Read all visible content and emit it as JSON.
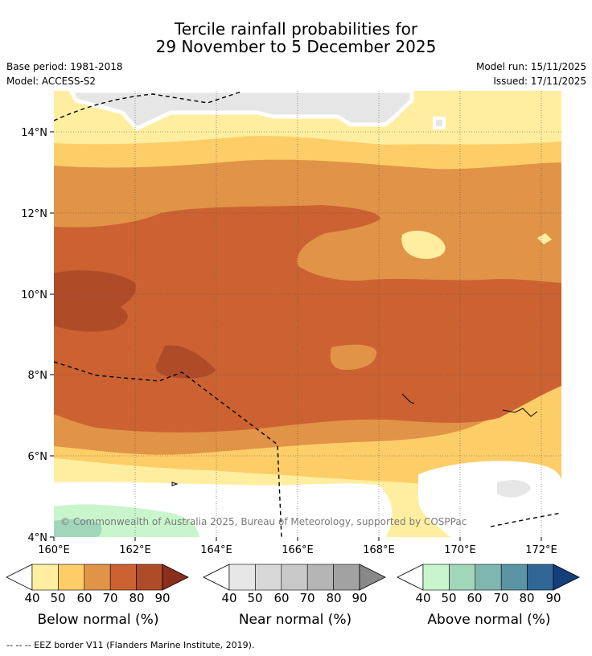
{
  "title": {
    "line1": "Tercile rainfall probabilities for",
    "line2": "29 November to 5 December 2025"
  },
  "meta": {
    "base_period": "Base period: 1981-2018",
    "model": "Model: ACCESS-S2",
    "model_run": "Model run: 15/11/2025",
    "issued": "Issued: 17/11/2025"
  },
  "map": {
    "lon_ticks": [
      "160°E",
      "162°E",
      "164°E",
      "166°E",
      "168°E",
      "170°E",
      "172°E"
    ],
    "lat_ticks": [
      "14°N",
      "12°N",
      "10°N",
      "8°N",
      "6°N",
      "4°N"
    ],
    "copyright": "© Commonwealth of Australia 2025, Bureau of Meteorology, supported by COSPPac"
  },
  "colorbars": [
    {
      "label": "Below normal (%)",
      "ticks": [
        "40",
        "50",
        "60",
        "70",
        "80",
        "90"
      ],
      "colors": [
        "#ffeea0",
        "#fdcd68",
        "#e19347",
        "#cc6231",
        "#b04b28",
        "#8b2e1c"
      ]
    },
    {
      "label": "Near normal (%)",
      "ticks": [
        "40",
        "50",
        "60",
        "70",
        "80",
        "90"
      ],
      "colors": [
        "#e6e6e6",
        "#d8d8d8",
        "#c8c8c8",
        "#b5b5b5",
        "#a2a2a2",
        "#888888"
      ]
    },
    {
      "label": "Above normal (%)",
      "ticks": [
        "40",
        "50",
        "60",
        "70",
        "80",
        "90"
      ],
      "colors": [
        "#c8f5cc",
        "#a2d6bb",
        "#7fb6b0",
        "#5b94a3",
        "#316796",
        "#143f7a"
      ]
    }
  ],
  "footer": "--  --  -- EEZ border V11 (Flanders Marine Institute, 2019)."
}
